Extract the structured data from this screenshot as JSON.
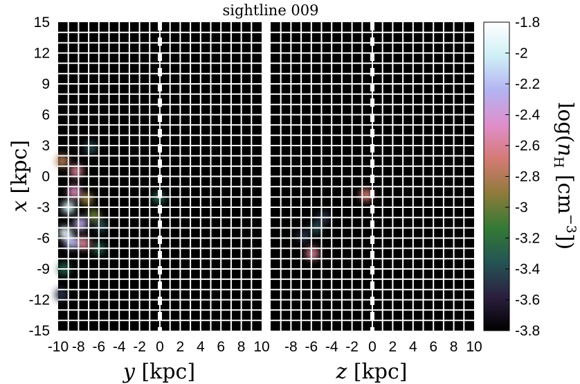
{
  "chart_data": {
    "type": "heatmap",
    "title": "sightline 009",
    "panels": [
      {
        "name": "y-x",
        "xlabel_var": "y",
        "xlabel_unit": " [kpc]",
        "ylabel_var": "x",
        "ylabel_unit": " [kpc]",
        "xlim": [
          -10,
          10
        ],
        "ylim": [
          -15,
          15
        ],
        "xticks": [
          "-10",
          "-8",
          "-6",
          "-4",
          "-2",
          "0",
          "2",
          "4",
          "6",
          "8",
          "10"
        ],
        "yticks": [
          "15",
          "12",
          "9",
          "6",
          "3",
          "0",
          "-3",
          "-6",
          "-9",
          "-12",
          "-15"
        ],
        "gas_blobs": [
          {
            "x": -9.3,
            "y": -5.5,
            "log_nH": -1.9
          },
          {
            "x": -9.0,
            "y": -3.0,
            "log_nH": -2.0
          },
          {
            "x": -8.7,
            "y": -6.4,
            "log_nH": -2.2
          },
          {
            "x": -8.4,
            "y": -1.5,
            "log_nH": -2.5
          },
          {
            "x": -8.2,
            "y": 0.5,
            "log_nH": -2.6
          },
          {
            "x": -7.8,
            "y": -4.6,
            "log_nH": -2.3
          },
          {
            "x": -7.5,
            "y": -6.5,
            "log_nH": -2.6
          },
          {
            "x": -9.6,
            "y": 1.5,
            "log_nH": -2.8
          },
          {
            "x": -7.2,
            "y": -2.2,
            "log_nH": -2.9
          },
          {
            "x": -6.5,
            "y": -3.8,
            "log_nH": -3.0
          },
          {
            "x": -6.8,
            "y": 2.8,
            "log_nH": -3.4
          },
          {
            "x": -9.4,
            "y": -9.0,
            "log_nH": -3.3
          },
          {
            "x": -6.0,
            "y": -7.0,
            "log_nH": -3.3
          },
          {
            "x": -9.7,
            "y": -11.5,
            "log_nH": -3.5
          },
          {
            "x": -5.8,
            "y": -4.8,
            "log_nH": -3.4
          },
          {
            "x": -0.1,
            "y": -2.1,
            "log_nH": -3.3
          }
        ]
      },
      {
        "name": "z-x",
        "xlabel_var": "z",
        "xlabel_unit": " [kpc]",
        "xlim": [
          -10,
          10
        ],
        "ylim": [
          -15,
          15
        ],
        "xticks": [
          "-8",
          "-6",
          "-4",
          "-2",
          "0",
          "2",
          "4",
          "6",
          "8",
          "10"
        ],
        "gas_blobs": [
          {
            "x": -0.6,
            "y": -1.8,
            "log_nH": -2.7
          },
          {
            "x": -5.9,
            "y": -7.5,
            "log_nH": -2.6
          },
          {
            "x": -5.5,
            "y": -5.0,
            "log_nH": -3.4
          },
          {
            "x": -6.8,
            "y": -5.8,
            "log_nH": -3.5
          },
          {
            "x": -4.8,
            "y": -4.0,
            "log_nH": -3.5
          }
        ]
      }
    ],
    "colorbar": {
      "label_prefix": "log(",
      "label_var": "n",
      "label_sub": "H",
      "label_unit": " [cm",
      "label_exp": "−3",
      "label_suffix": "])",
      "range": [
        -3.8,
        -1.8
      ],
      "ticks": [
        "-1.8",
        "-2",
        "-2.2",
        "-2.4",
        "-2.6",
        "-2.8",
        "-3",
        "-3.2",
        "-3.4",
        "-3.6",
        "-3.8"
      ],
      "colors": [
        "#000000",
        "#2c1f3f",
        "#245454",
        "#337a35",
        "#8e7a3a",
        "#d47a74",
        "#e08ecb",
        "#b3b3f2",
        "#cfeef6",
        "#ffffff"
      ]
    },
    "grid": true,
    "grid_color": "#ffffff",
    "background_color": "#000000"
  }
}
